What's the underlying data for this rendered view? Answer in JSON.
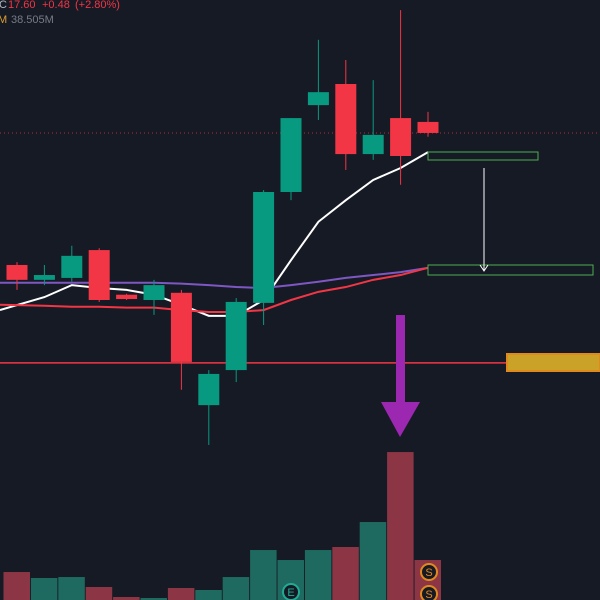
{
  "header": {
    "ohlc_prefix": "C",
    "close": "17.60",
    "change": "+0.48",
    "change_pct": "(+2.80%)",
    "volume_prefix": "M",
    "volume": "38.505M"
  },
  "events": [
    "E",
    "S",
    "S"
  ],
  "chart_data": {
    "type": "candlestick",
    "open": [
      14.85,
      14.54,
      14.58,
      15.16,
      14.23,
      14.12,
      14.27,
      11.93,
      12.66,
      14.06,
      16.37,
      18.18,
      18.62,
      17.16,
      17.91,
      17.83
    ],
    "high": [
      14.91,
      14.85,
      15.25,
      15.2,
      14.25,
      14.54,
      14.33,
      12.66,
      14.16,
      16.41,
      17.91,
      19.54,
      19.12,
      18.7,
      20.16,
      18.04
    ],
    "low": [
      14.33,
      14.43,
      14.5,
      14.08,
      14.12,
      13.81,
      12.25,
      11.1,
      12.41,
      13.6,
      16.2,
      17.87,
      16.83,
      17.04,
      16.52,
      17.52
    ],
    "close": [
      14.54,
      14.64,
      15.04,
      14.12,
      14.14,
      14.43,
      12.83,
      12.58,
      14.08,
      16.37,
      17.91,
      18.45,
      17.16,
      17.56,
      17.12,
      17.6
    ],
    "ylim": [
      7.87,
      20.37
    ],
    "up_color": "#089981",
    "down_color": "#f23645",
    "lines": [
      {
        "color": "#ffffff",
        "values": [
          13.91,
          14.18,
          14.43,
          14.37,
          14.33,
          14.23,
          14.02,
          13.79,
          13.79,
          14.12,
          14.95,
          15.75,
          16.2,
          16.62,
          16.87,
          17.2
        ]
      },
      {
        "color": "#7e57c2",
        "values": [
          14.48,
          14.48,
          14.48,
          14.48,
          14.48,
          14.48,
          14.46,
          14.43,
          14.39,
          14.37,
          14.43,
          14.5,
          14.58,
          14.64,
          14.7,
          14.79
        ]
      },
      {
        "color": "#f23645",
        "values": [
          14.02,
          14.0,
          13.98,
          13.98,
          13.96,
          13.96,
          13.91,
          13.87,
          13.87,
          13.91,
          14.12,
          14.29,
          14.39,
          14.54,
          14.64,
          14.79
        ]
      }
    ],
    "levels": [
      {
        "value": 12.81,
        "color": "#f23645"
      }
    ],
    "volume": {
      "values": [
        26.95,
        21.18,
        22.14,
        12.51,
        2.89,
        1.93,
        11.55,
        9.63,
        22.14,
        48.13,
        38.51,
        48.13,
        51.02,
        75.08,
        142.47,
        38.505
      ],
      "ylim": [
        0,
        577.8
      ],
      "up_color": "#1e6a60",
      "down_color": "#8c3645"
    }
  }
}
